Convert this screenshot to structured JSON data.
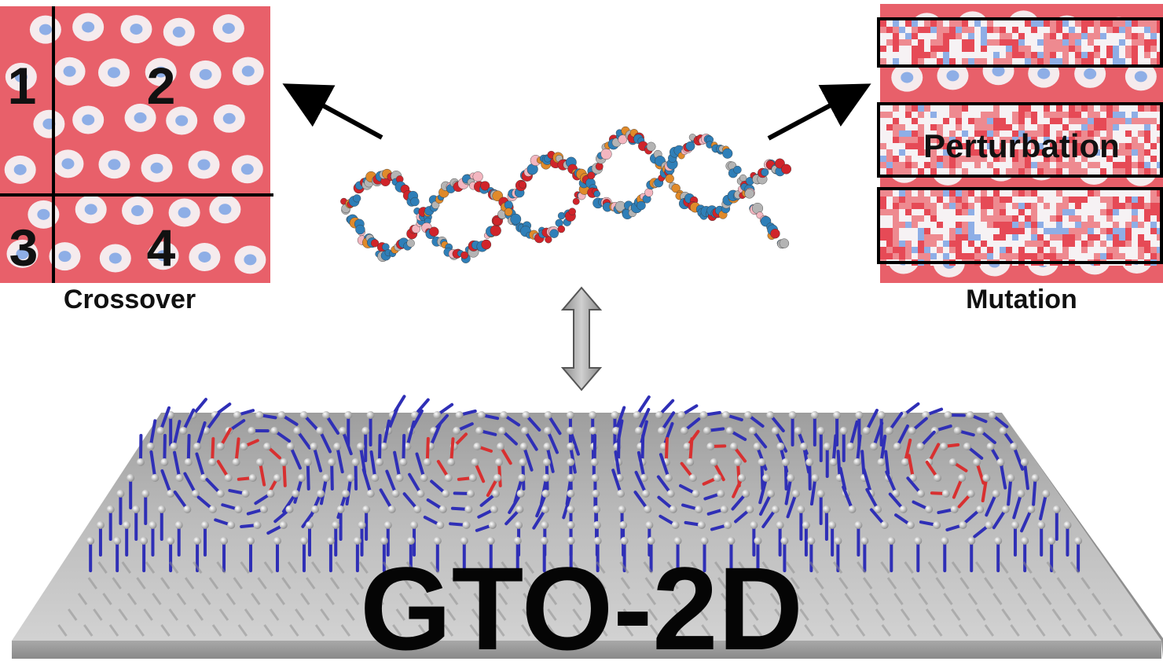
{
  "crossover": {
    "caption": "Crossover",
    "quadrant_labels": [
      "1",
      "2",
      "3",
      "4"
    ]
  },
  "mutation": {
    "caption": "Mutation",
    "band_label": "Perturbation"
  },
  "main_label": "GTO-2D",
  "colors": {
    "lattice_red": "#e8606a",
    "lattice_white": "#f6f2f4",
    "lattice_blue": "#8eaee6",
    "dna_blue": "#2f7fb8",
    "dna_red": "#d0242a",
    "dna_orange": "#e08a2a",
    "dna_grey": "#b4b4b4",
    "dna_pink": "#f3b6c0",
    "spin_blue": "#2f2fb6",
    "spin_red": "#d83030",
    "slab_grey": "#b5b5b5"
  }
}
